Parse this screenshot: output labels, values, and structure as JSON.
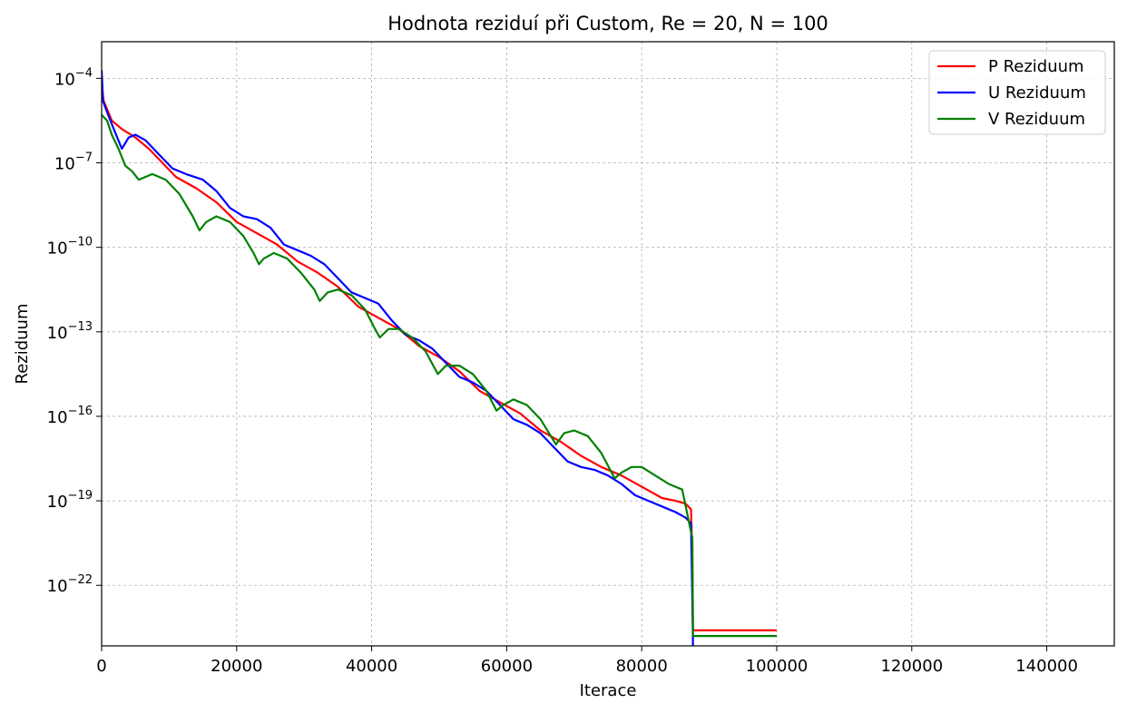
{
  "chart_data": {
    "type": "line",
    "title": "Hodnota reziduí při Custom, Re = 20, N = 100",
    "xlabel": "Iterace",
    "ylabel": "Reziduum",
    "xlim": [
      0,
      150000
    ],
    "ylim_log10": [
      -24.15,
      -2.7
    ],
    "yscale": "log",
    "grid": true,
    "legend_position": "top-right",
    "x_ticks": [
      {
        "value": 0,
        "label": "0"
      },
      {
        "value": 20000,
        "label": "20000"
      },
      {
        "value": 40000,
        "label": "40000"
      },
      {
        "value": 60000,
        "label": "60000"
      },
      {
        "value": 80000,
        "label": "80000"
      },
      {
        "value": 100000,
        "label": "100000"
      },
      {
        "value": 120000,
        "label": "120000"
      },
      {
        "value": 140000,
        "label": "140000"
      }
    ],
    "y_ticks": [
      {
        "exp": -4,
        "base": "10",
        "sup": "−4"
      },
      {
        "exp": -7,
        "base": "10",
        "sup": "−7"
      },
      {
        "exp": -10,
        "base": "10",
        "sup": "−10"
      },
      {
        "exp": -13,
        "base": "10",
        "sup": "−13"
      },
      {
        "exp": -16,
        "base": "10",
        "sup": "−16"
      },
      {
        "exp": -19,
        "base": "10",
        "sup": "−19"
      },
      {
        "exp": -22,
        "base": "10",
        "sup": "−22"
      }
    ],
    "series": [
      {
        "name": "P Reziduum",
        "color": "#ff0000",
        "points_log10": [
          [
            0,
            -4.2
          ],
          [
            300,
            -4.8
          ],
          [
            1500,
            -5.5
          ],
          [
            3000,
            -5.8
          ],
          [
            5000,
            -6.1
          ],
          [
            7000,
            -6.5
          ],
          [
            9000,
            -7.0
          ],
          [
            11000,
            -7.5
          ],
          [
            14000,
            -7.9
          ],
          [
            17000,
            -8.4
          ],
          [
            20000,
            -9.1
          ],
          [
            23000,
            -9.5
          ],
          [
            26000,
            -9.9
          ],
          [
            29000,
            -10.5
          ],
          [
            32000,
            -10.9
          ],
          [
            35000,
            -11.4
          ],
          [
            38000,
            -12.1
          ],
          [
            41000,
            -12.5
          ],
          [
            44000,
            -12.9
          ],
          [
            47000,
            -13.5
          ],
          [
            50000,
            -13.9
          ],
          [
            53000,
            -14.4
          ],
          [
            56000,
            -15.1
          ],
          [
            59000,
            -15.5
          ],
          [
            62000,
            -15.9
          ],
          [
            65000,
            -16.5
          ],
          [
            68000,
            -16.9
          ],
          [
            71000,
            -17.4
          ],
          [
            74000,
            -17.8
          ],
          [
            77000,
            -18.1
          ],
          [
            80000,
            -18.5
          ],
          [
            83000,
            -18.9
          ],
          [
            85000,
            -19.0
          ],
          [
            86500,
            -19.1
          ],
          [
            87300,
            -19.3
          ],
          [
            87500,
            -21.0
          ],
          [
            87600,
            -23.6
          ],
          [
            100000,
            -23.6
          ]
        ]
      },
      {
        "name": "U Reziduum",
        "color": "#0000ff",
        "points_log10": [
          [
            0,
            -3.7
          ],
          [
            200,
            -4.8
          ],
          [
            800,
            -5.2
          ],
          [
            1800,
            -5.8
          ],
          [
            3000,
            -6.5
          ],
          [
            4000,
            -6.1
          ],
          [
            5000,
            -6.0
          ],
          [
            6500,
            -6.2
          ],
          [
            8500,
            -6.7
          ],
          [
            10500,
            -7.2
          ],
          [
            12500,
            -7.4
          ],
          [
            15000,
            -7.6
          ],
          [
            17000,
            -8.0
          ],
          [
            19000,
            -8.6
          ],
          [
            21000,
            -8.9
          ],
          [
            23000,
            -9.0
          ],
          [
            25000,
            -9.3
          ],
          [
            27000,
            -9.9
          ],
          [
            29000,
            -10.1
          ],
          [
            31000,
            -10.3
          ],
          [
            33000,
            -10.6
          ],
          [
            35000,
            -11.1
          ],
          [
            37000,
            -11.6
          ],
          [
            39000,
            -11.8
          ],
          [
            41000,
            -12.0
          ],
          [
            43000,
            -12.6
          ],
          [
            45000,
            -13.1
          ],
          [
            47000,
            -13.3
          ],
          [
            49000,
            -13.6
          ],
          [
            51000,
            -14.1
          ],
          [
            53000,
            -14.6
          ],
          [
            55000,
            -14.8
          ],
          [
            57000,
            -15.1
          ],
          [
            59000,
            -15.6
          ],
          [
            61000,
            -16.1
          ],
          [
            63000,
            -16.3
          ],
          [
            65000,
            -16.6
          ],
          [
            67000,
            -17.1
          ],
          [
            69000,
            -17.6
          ],
          [
            71000,
            -17.8
          ],
          [
            73000,
            -17.9
          ],
          [
            75000,
            -18.1
          ],
          [
            77000,
            -18.4
          ],
          [
            79000,
            -18.8
          ],
          [
            81000,
            -19.0
          ],
          [
            83000,
            -19.2
          ],
          [
            85000,
            -19.4
          ],
          [
            86500,
            -19.6
          ],
          [
            87300,
            -19.8
          ],
          [
            87500,
            -22.5
          ],
          [
            87600,
            -24.15
          ]
        ]
      },
      {
        "name": "V Reziduum",
        "color": "#008000",
        "points_log10": [
          [
            0,
            -5.3
          ],
          [
            800,
            -5.5
          ],
          [
            1500,
            -6.0
          ],
          [
            2500,
            -6.5
          ],
          [
            3500,
            -7.1
          ],
          [
            4500,
            -7.3
          ],
          [
            5500,
            -7.6
          ],
          [
            6500,
            -7.5
          ],
          [
            7500,
            -7.4
          ],
          [
            9500,
            -7.6
          ],
          [
            11500,
            -8.1
          ],
          [
            13500,
            -8.9
          ],
          [
            14500,
            -9.4
          ],
          [
            15500,
            -9.1
          ],
          [
            17000,
            -8.9
          ],
          [
            19000,
            -9.1
          ],
          [
            21000,
            -9.6
          ],
          [
            22500,
            -10.2
          ],
          [
            23300,
            -10.6
          ],
          [
            24000,
            -10.4
          ],
          [
            25500,
            -10.2
          ],
          [
            27500,
            -10.4
          ],
          [
            29500,
            -10.9
          ],
          [
            31500,
            -11.5
          ],
          [
            32300,
            -11.9
          ],
          [
            33500,
            -11.6
          ],
          [
            35000,
            -11.5
          ],
          [
            37000,
            -11.7
          ],
          [
            39000,
            -12.2
          ],
          [
            40500,
            -12.9
          ],
          [
            41200,
            -13.2
          ],
          [
            42500,
            -12.9
          ],
          [
            44000,
            -12.9
          ],
          [
            46000,
            -13.2
          ],
          [
            48000,
            -13.7
          ],
          [
            49800,
            -14.5
          ],
          [
            51000,
            -14.2
          ],
          [
            53000,
            -14.2
          ],
          [
            55000,
            -14.5
          ],
          [
            57000,
            -15.1
          ],
          [
            58500,
            -15.8
          ],
          [
            59500,
            -15.6
          ],
          [
            61000,
            -15.4
          ],
          [
            63000,
            -15.6
          ],
          [
            65000,
            -16.1
          ],
          [
            67300,
            -17.0
          ],
          [
            68500,
            -16.6
          ],
          [
            70000,
            -16.5
          ],
          [
            72000,
            -16.7
          ],
          [
            74000,
            -17.3
          ],
          [
            76000,
            -18.2
          ],
          [
            77000,
            -18.0
          ],
          [
            78500,
            -17.8
          ],
          [
            80000,
            -17.8
          ],
          [
            82000,
            -18.1
          ],
          [
            84000,
            -18.4
          ],
          [
            86000,
            -18.6
          ],
          [
            86700,
            -19.4
          ],
          [
            87200,
            -20.0
          ],
          [
            87500,
            -20.3
          ],
          [
            87600,
            -23.8
          ],
          [
            100000,
            -23.8
          ]
        ]
      }
    ]
  }
}
